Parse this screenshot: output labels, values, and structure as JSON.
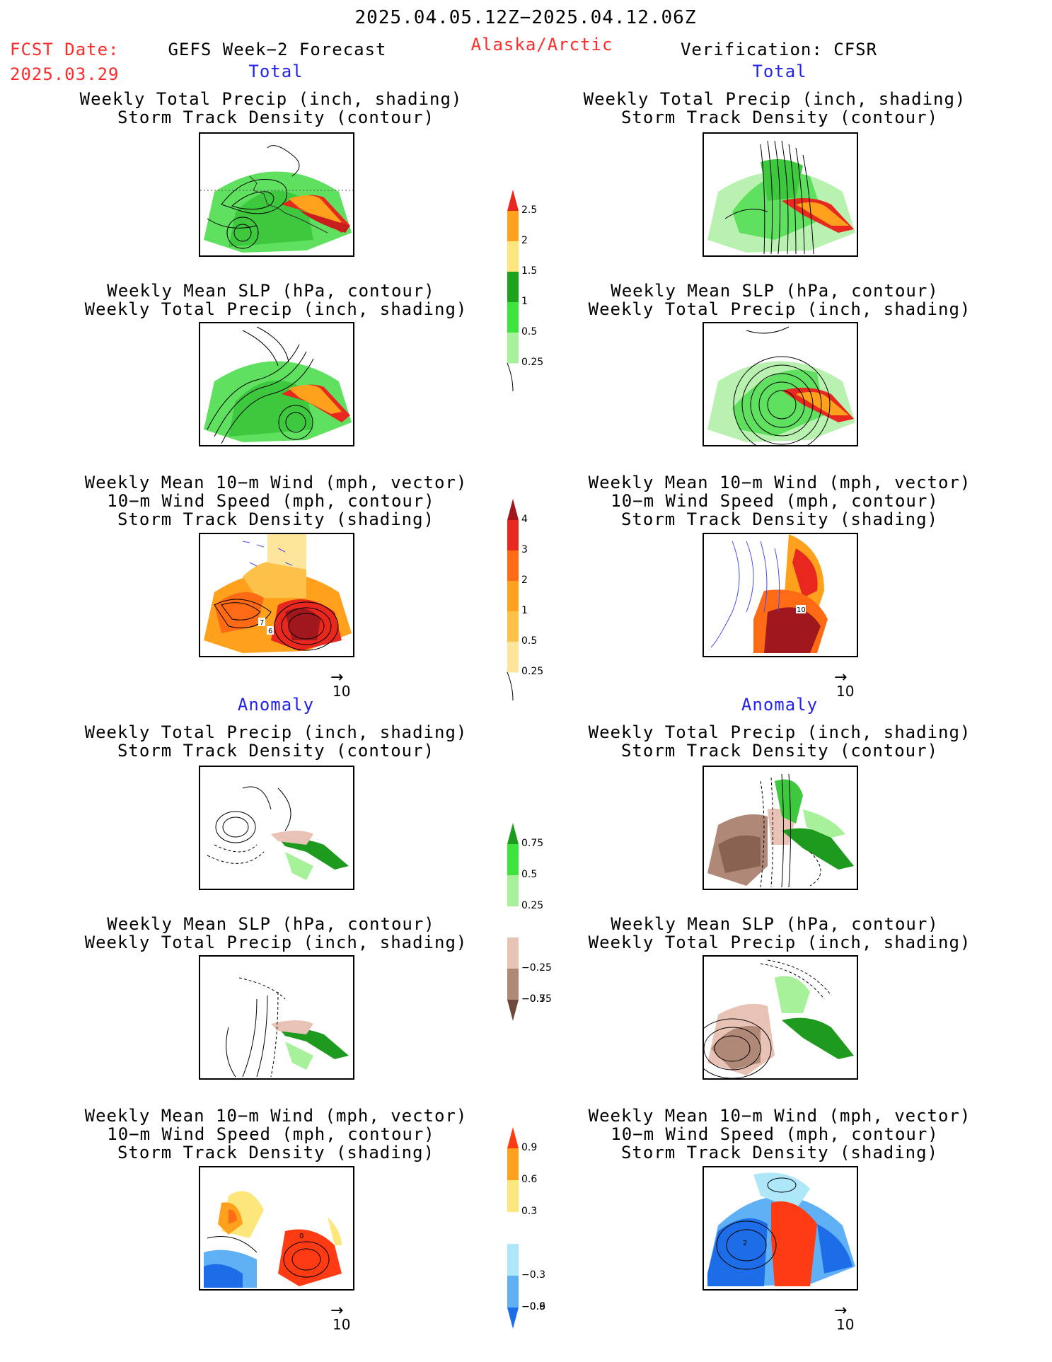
{
  "header": {
    "date_range": "2025.04.05.12Z−2025.04.12.06Z",
    "fcst_label": "FCST Date:",
    "fcst_date": "2025.03.29",
    "title": "GEFS Week−2 Forecast",
    "region": "Alaska/Arctic",
    "verification": "Verification: CFSR"
  },
  "sections": {
    "total": "Total",
    "anomaly": "Anomaly"
  },
  "panel_titles": {
    "precip_track": [
      "Weekly Total Precip (inch, shading)",
      "Storm Track Density (contour)"
    ],
    "slp_precip": [
      "Weekly Mean SLP (hPa, contour)",
      "Weekly Total Precip (inch, shading)"
    ],
    "wind_track": [
      "Weekly Mean 10−m Wind (mph, vector)",
      "10−m Wind Speed (mph, contour)",
      "Storm Track Density (shading)"
    ]
  },
  "vector_ref": "10",
  "map_labels": {
    "fcst_total_wind": [
      "7",
      "6"
    ],
    "verif_total_wind": [
      "10"
    ],
    "fcst_anom_wind": [
      "0"
    ],
    "verif_anom_wind": [
      "2"
    ]
  },
  "colorbars": {
    "precip_total": {
      "labels": [
        "2.5",
        "2",
        "1.5",
        "1",
        "0.5",
        "0.25"
      ],
      "colors": [
        "#e8281e",
        "#ffa11d",
        "#fde67c",
        "#1ba31b",
        "#3ee33e",
        "#a6f19a"
      ]
    },
    "track_total": {
      "labels": [
        "4",
        "3",
        "2",
        "1",
        "0.5",
        "0.25"
      ],
      "colors": [
        "#a0181e",
        "#e8281e",
        "#ff6a14",
        "#ffa11d",
        "#fdc14a",
        "#fde69c"
      ]
    },
    "precip_anom": {
      "labels": [
        "0.75",
        "0.5",
        "0.25",
        "−0.25",
        "−0.5",
        "−0.75"
      ],
      "colors": [
        "#1e9b1e",
        "#3ee33e",
        "#a6f19a",
        "#ffffff",
        "#e8c3b5",
        "#b08878",
        "#6e4a3c"
      ]
    },
    "track_anom": {
      "labels": [
        "0.9",
        "0.6",
        "0.3",
        "−0.3",
        "−0.6",
        "−0.9"
      ],
      "colors": [
        "#ff3b14",
        "#ffa11d",
        "#fde67c",
        "#ffffff",
        "#aee7f8",
        "#5fb0f5",
        "#1e6de8"
      ]
    }
  }
}
